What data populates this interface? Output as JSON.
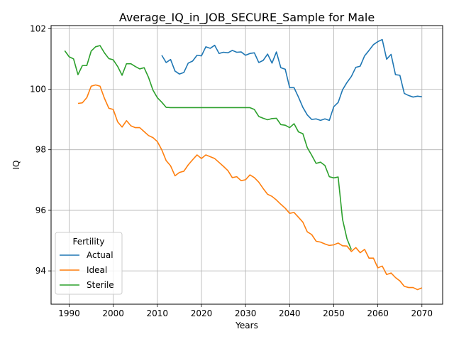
{
  "chart_data": {
    "type": "line",
    "title": "Average_IQ_in_JOB_SECURE_Sample for Male",
    "xlabel": "Years",
    "ylabel": "IQ",
    "xlim": [
      1985.9,
      2074.7
    ],
    "ylim": [
      92.9,
      102.1
    ],
    "xticks": [
      1990,
      2000,
      2010,
      2020,
      2030,
      2040,
      2050,
      2060,
      2070
    ],
    "yticks": [
      94,
      96,
      98,
      100,
      102
    ],
    "grid": true,
    "legend": {
      "title": "Fertility",
      "position": "lower-left"
    },
    "series": [
      {
        "name": "Actual",
        "color": "#1f77b4",
        "points": [
          [
            2011,
            101.12
          ],
          [
            2012,
            100.88
          ],
          [
            2013,
            100.98
          ],
          [
            2014,
            100.6
          ],
          [
            2015,
            100.5
          ],
          [
            2016,
            100.55
          ],
          [
            2017,
            100.86
          ],
          [
            2018,
            100.93
          ],
          [
            2019,
            101.12
          ],
          [
            2020,
            101.1
          ],
          [
            2021,
            101.4
          ],
          [
            2022,
            101.35
          ],
          [
            2023,
            101.45
          ],
          [
            2024,
            101.18
          ],
          [
            2025,
            101.22
          ],
          [
            2026,
            101.2
          ],
          [
            2027,
            101.28
          ],
          [
            2028,
            101.22
          ],
          [
            2029,
            101.23
          ],
          [
            2030,
            101.12
          ],
          [
            2031,
            101.18
          ],
          [
            2032,
            101.2
          ],
          [
            2033,
            100.88
          ],
          [
            2034,
            100.95
          ],
          [
            2035,
            101.16
          ],
          [
            2036,
            100.86
          ],
          [
            2037,
            101.23
          ],
          [
            2038,
            100.71
          ],
          [
            2039,
            100.66
          ],
          [
            2040,
            100.05
          ],
          [
            2041,
            100.05
          ],
          [
            2042,
            99.74
          ],
          [
            2043,
            99.4
          ],
          [
            2044,
            99.15
          ],
          [
            2045,
            99.0
          ],
          [
            2046,
            99.02
          ],
          [
            2047,
            98.97
          ],
          [
            2048,
            99.02
          ],
          [
            2049,
            98.97
          ],
          [
            2050,
            99.42
          ],
          [
            2051,
            99.56
          ],
          [
            2052,
            99.98
          ],
          [
            2053,
            100.22
          ],
          [
            2054,
            100.42
          ],
          [
            2055,
            100.72
          ],
          [
            2056,
            100.76
          ],
          [
            2057,
            101.1
          ],
          [
            2058,
            101.28
          ],
          [
            2059,
            101.47
          ],
          [
            2060,
            101.57
          ],
          [
            2061,
            101.64
          ],
          [
            2062,
            100.99
          ],
          [
            2063,
            101.15
          ],
          [
            2064,
            100.48
          ],
          [
            2065,
            100.46
          ],
          [
            2066,
            99.86
          ],
          [
            2067,
            99.79
          ],
          [
            2068,
            99.74
          ],
          [
            2069,
            99.77
          ],
          [
            2070,
            99.75
          ]
        ]
      },
      {
        "name": "Ideal",
        "color": "#ff7f0e",
        "points": [
          [
            1992,
            99.53
          ],
          [
            1993,
            99.55
          ],
          [
            1994,
            99.72
          ],
          [
            1995,
            100.1
          ],
          [
            1996,
            100.14
          ],
          [
            1997,
            100.1
          ],
          [
            1998,
            99.7
          ],
          [
            1999,
            99.37
          ],
          [
            2000,
            99.33
          ],
          [
            2001,
            98.92
          ],
          [
            2002,
            98.75
          ],
          [
            2003,
            98.96
          ],
          [
            2004,
            98.79
          ],
          [
            2005,
            98.73
          ],
          [
            2006,
            98.73
          ],
          [
            2007,
            98.6
          ],
          [
            2008,
            98.47
          ],
          [
            2009,
            98.4
          ],
          [
            2010,
            98.27
          ],
          [
            2011,
            98.0
          ],
          [
            2012,
            97.64
          ],
          [
            2013,
            97.47
          ],
          [
            2014,
            97.14
          ],
          [
            2015,
            97.25
          ],
          [
            2016,
            97.29
          ],
          [
            2017,
            97.5
          ],
          [
            2018,
            97.67
          ],
          [
            2019,
            97.83
          ],
          [
            2020,
            97.71
          ],
          [
            2021,
            97.83
          ],
          [
            2022,
            97.77
          ],
          [
            2023,
            97.71
          ],
          [
            2024,
            97.58
          ],
          [
            2025,
            97.45
          ],
          [
            2026,
            97.31
          ],
          [
            2027,
            97.08
          ],
          [
            2028,
            97.11
          ],
          [
            2029,
            96.98
          ],
          [
            2030,
            97.01
          ],
          [
            2031,
            97.17
          ],
          [
            2032,
            97.08
          ],
          [
            2033,
            96.93
          ],
          [
            2034,
            96.72
          ],
          [
            2035,
            96.53
          ],
          [
            2036,
            96.46
          ],
          [
            2037,
            96.34
          ],
          [
            2038,
            96.2
          ],
          [
            2039,
            96.07
          ],
          [
            2040,
            95.9
          ],
          [
            2041,
            95.93
          ],
          [
            2042,
            95.77
          ],
          [
            2043,
            95.61
          ],
          [
            2044,
            95.29
          ],
          [
            2045,
            95.2
          ],
          [
            2046,
            94.98
          ],
          [
            2047,
            94.95
          ],
          [
            2048,
            94.89
          ],
          [
            2049,
            94.84
          ],
          [
            2050,
            94.86
          ],
          [
            2051,
            94.92
          ],
          [
            2052,
            94.83
          ],
          [
            2053,
            94.82
          ],
          [
            2054,
            94.64
          ],
          [
            2055,
            94.77
          ],
          [
            2056,
            94.6
          ],
          [
            2057,
            94.71
          ],
          [
            2058,
            94.42
          ],
          [
            2059,
            94.42
          ],
          [
            2060,
            94.1
          ],
          [
            2061,
            94.16
          ],
          [
            2062,
            93.88
          ],
          [
            2063,
            93.93
          ],
          [
            2064,
            93.78
          ],
          [
            2065,
            93.67
          ],
          [
            2066,
            93.49
          ],
          [
            2067,
            93.45
          ],
          [
            2068,
            93.45
          ],
          [
            2069,
            93.38
          ],
          [
            2070,
            93.44
          ]
        ]
      },
      {
        "name": "Sterile",
        "color": "#2ca02c",
        "points": [
          [
            1989,
            101.27
          ],
          [
            1990,
            101.07
          ],
          [
            1991,
            101.0
          ],
          [
            1992,
            100.48
          ],
          [
            1993,
            100.78
          ],
          [
            1994,
            100.78
          ],
          [
            1995,
            101.26
          ],
          [
            1996,
            101.4
          ],
          [
            1997,
            101.44
          ],
          [
            1998,
            101.2
          ],
          [
            1999,
            101.01
          ],
          [
            2000,
            100.97
          ],
          [
            2001,
            100.75
          ],
          [
            2002,
            100.46
          ],
          [
            2003,
            100.84
          ],
          [
            2004,
            100.84
          ],
          [
            2005,
            100.75
          ],
          [
            2006,
            100.67
          ],
          [
            2007,
            100.71
          ],
          [
            2008,
            100.39
          ],
          [
            2009,
            99.97
          ],
          [
            2010,
            99.72
          ],
          [
            2011,
            99.57
          ],
          [
            2012,
            99.4
          ],
          [
            2013,
            99.39
          ],
          [
            2014,
            99.39
          ],
          [
            2015,
            99.39
          ],
          [
            2016,
            99.39
          ],
          [
            2017,
            99.39
          ],
          [
            2018,
            99.39
          ],
          [
            2019,
            99.39
          ],
          [
            2020,
            99.39
          ],
          [
            2021,
            99.39
          ],
          [
            2022,
            99.39
          ],
          [
            2023,
            99.39
          ],
          [
            2024,
            99.39
          ],
          [
            2025,
            99.39
          ],
          [
            2026,
            99.39
          ],
          [
            2027,
            99.39
          ],
          [
            2028,
            99.39
          ],
          [
            2029,
            99.39
          ],
          [
            2030,
            99.39
          ],
          [
            2031,
            99.39
          ],
          [
            2032,
            99.33
          ],
          [
            2033,
            99.1
          ],
          [
            2034,
            99.04
          ],
          [
            2035,
            98.99
          ],
          [
            2036,
            99.03
          ],
          [
            2037,
            99.04
          ],
          [
            2038,
            98.83
          ],
          [
            2039,
            98.81
          ],
          [
            2040,
            98.73
          ],
          [
            2041,
            98.86
          ],
          [
            2042,
            98.59
          ],
          [
            2043,
            98.53
          ],
          [
            2044,
            98.07
          ],
          [
            2045,
            97.82
          ],
          [
            2046,
            97.55
          ],
          [
            2047,
            97.59
          ],
          [
            2048,
            97.48
          ],
          [
            2049,
            97.11
          ],
          [
            2050,
            97.07
          ],
          [
            2051,
            97.1
          ],
          [
            2052,
            95.7
          ],
          [
            2053,
            95.06
          ],
          [
            2054,
            94.7
          ]
        ]
      }
    ]
  }
}
